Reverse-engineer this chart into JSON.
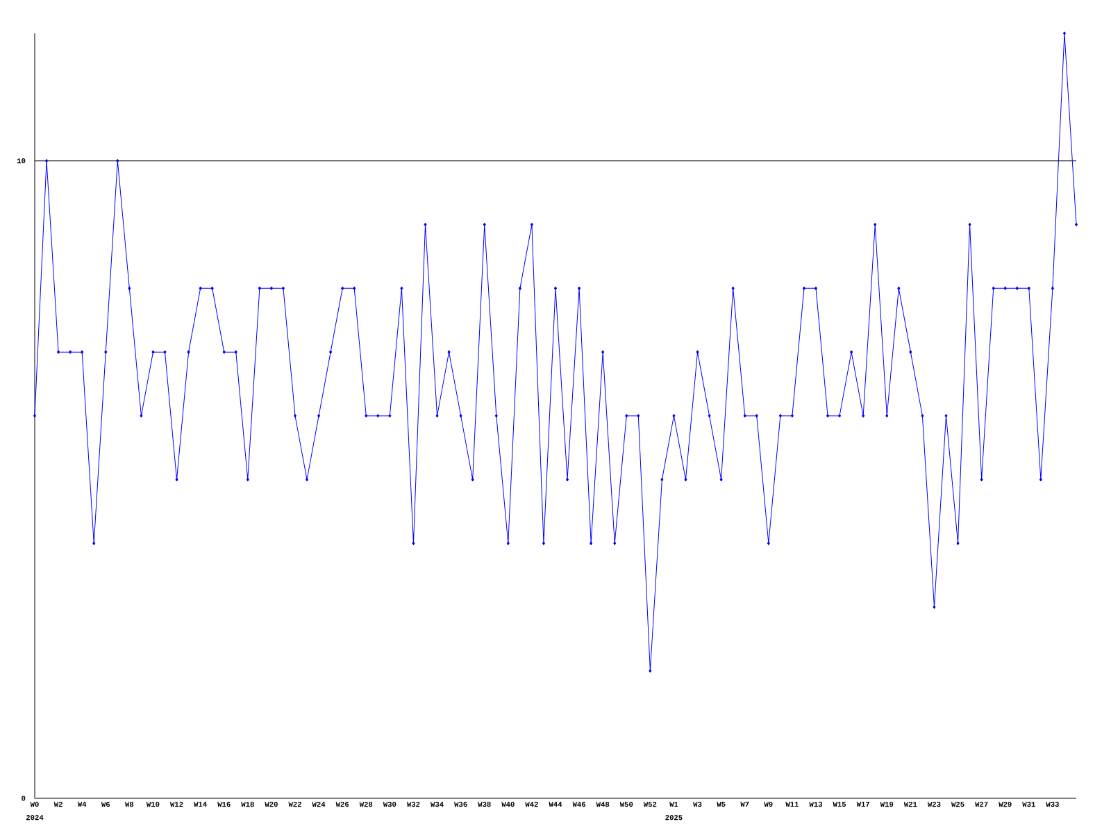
{
  "chart_data": {
    "type": "line",
    "color": "#0000ff",
    "marker": "diamond",
    "line_style": "solid",
    "categories": [
      "W0",
      null,
      "W2",
      null,
      "W4",
      null,
      "W6",
      null,
      "W8",
      null,
      "W10",
      null,
      "W12",
      null,
      "W14",
      null,
      "W16",
      null,
      "W18",
      null,
      "W20",
      null,
      "W22",
      null,
      "W24",
      null,
      "W26",
      null,
      "W28",
      null,
      "W30",
      null,
      "W32",
      null,
      "W34",
      null,
      "W36",
      null,
      "W38",
      null,
      "W40",
      null,
      "W42",
      null,
      "W44",
      null,
      "W46",
      null,
      "W48",
      null,
      "W50",
      null,
      "W52",
      null,
      "W1",
      null,
      "W3",
      null,
      "W5",
      null,
      "W7",
      null,
      "W9",
      null,
      "W11",
      null,
      "W13",
      null,
      "W15",
      null,
      "W17",
      null,
      "W19",
      null,
      "W21",
      null,
      "W23",
      null,
      "W25",
      null,
      "W27",
      null,
      "W29",
      null,
      "W31",
      null,
      "W33",
      null,
      null
    ],
    "values": [
      6,
      10,
      7,
      7,
      7,
      4,
      7,
      10,
      8,
      6,
      7,
      7,
      5,
      7,
      8,
      8,
      7,
      7,
      5,
      8,
      8,
      8,
      6,
      5,
      6,
      7,
      8,
      8,
      6,
      6,
      6,
      8,
      4,
      9,
      6,
      7,
      6,
      5,
      9,
      6,
      4,
      8,
      9,
      4,
      8,
      5,
      8,
      4,
      7,
      4,
      6,
      6,
      2,
      5,
      6,
      5,
      7,
      6,
      5,
      8,
      6,
      6,
      4,
      6,
      6,
      8,
      8,
      6,
      6,
      7,
      6,
      9,
      6,
      8,
      7,
      6,
      3,
      6,
      4,
      9,
      5,
      8,
      8,
      8,
      8,
      5,
      8,
      12,
      9
    ],
    "ylim": [
      0,
      12
    ],
    "yticks": [
      0,
      10
    ],
    "ref_lines": [
      {
        "axis": "y",
        "value": 10,
        "color": "#000000"
      }
    ],
    "annotations": [
      "2024",
      "2025"
    ],
    "grid": false
  }
}
